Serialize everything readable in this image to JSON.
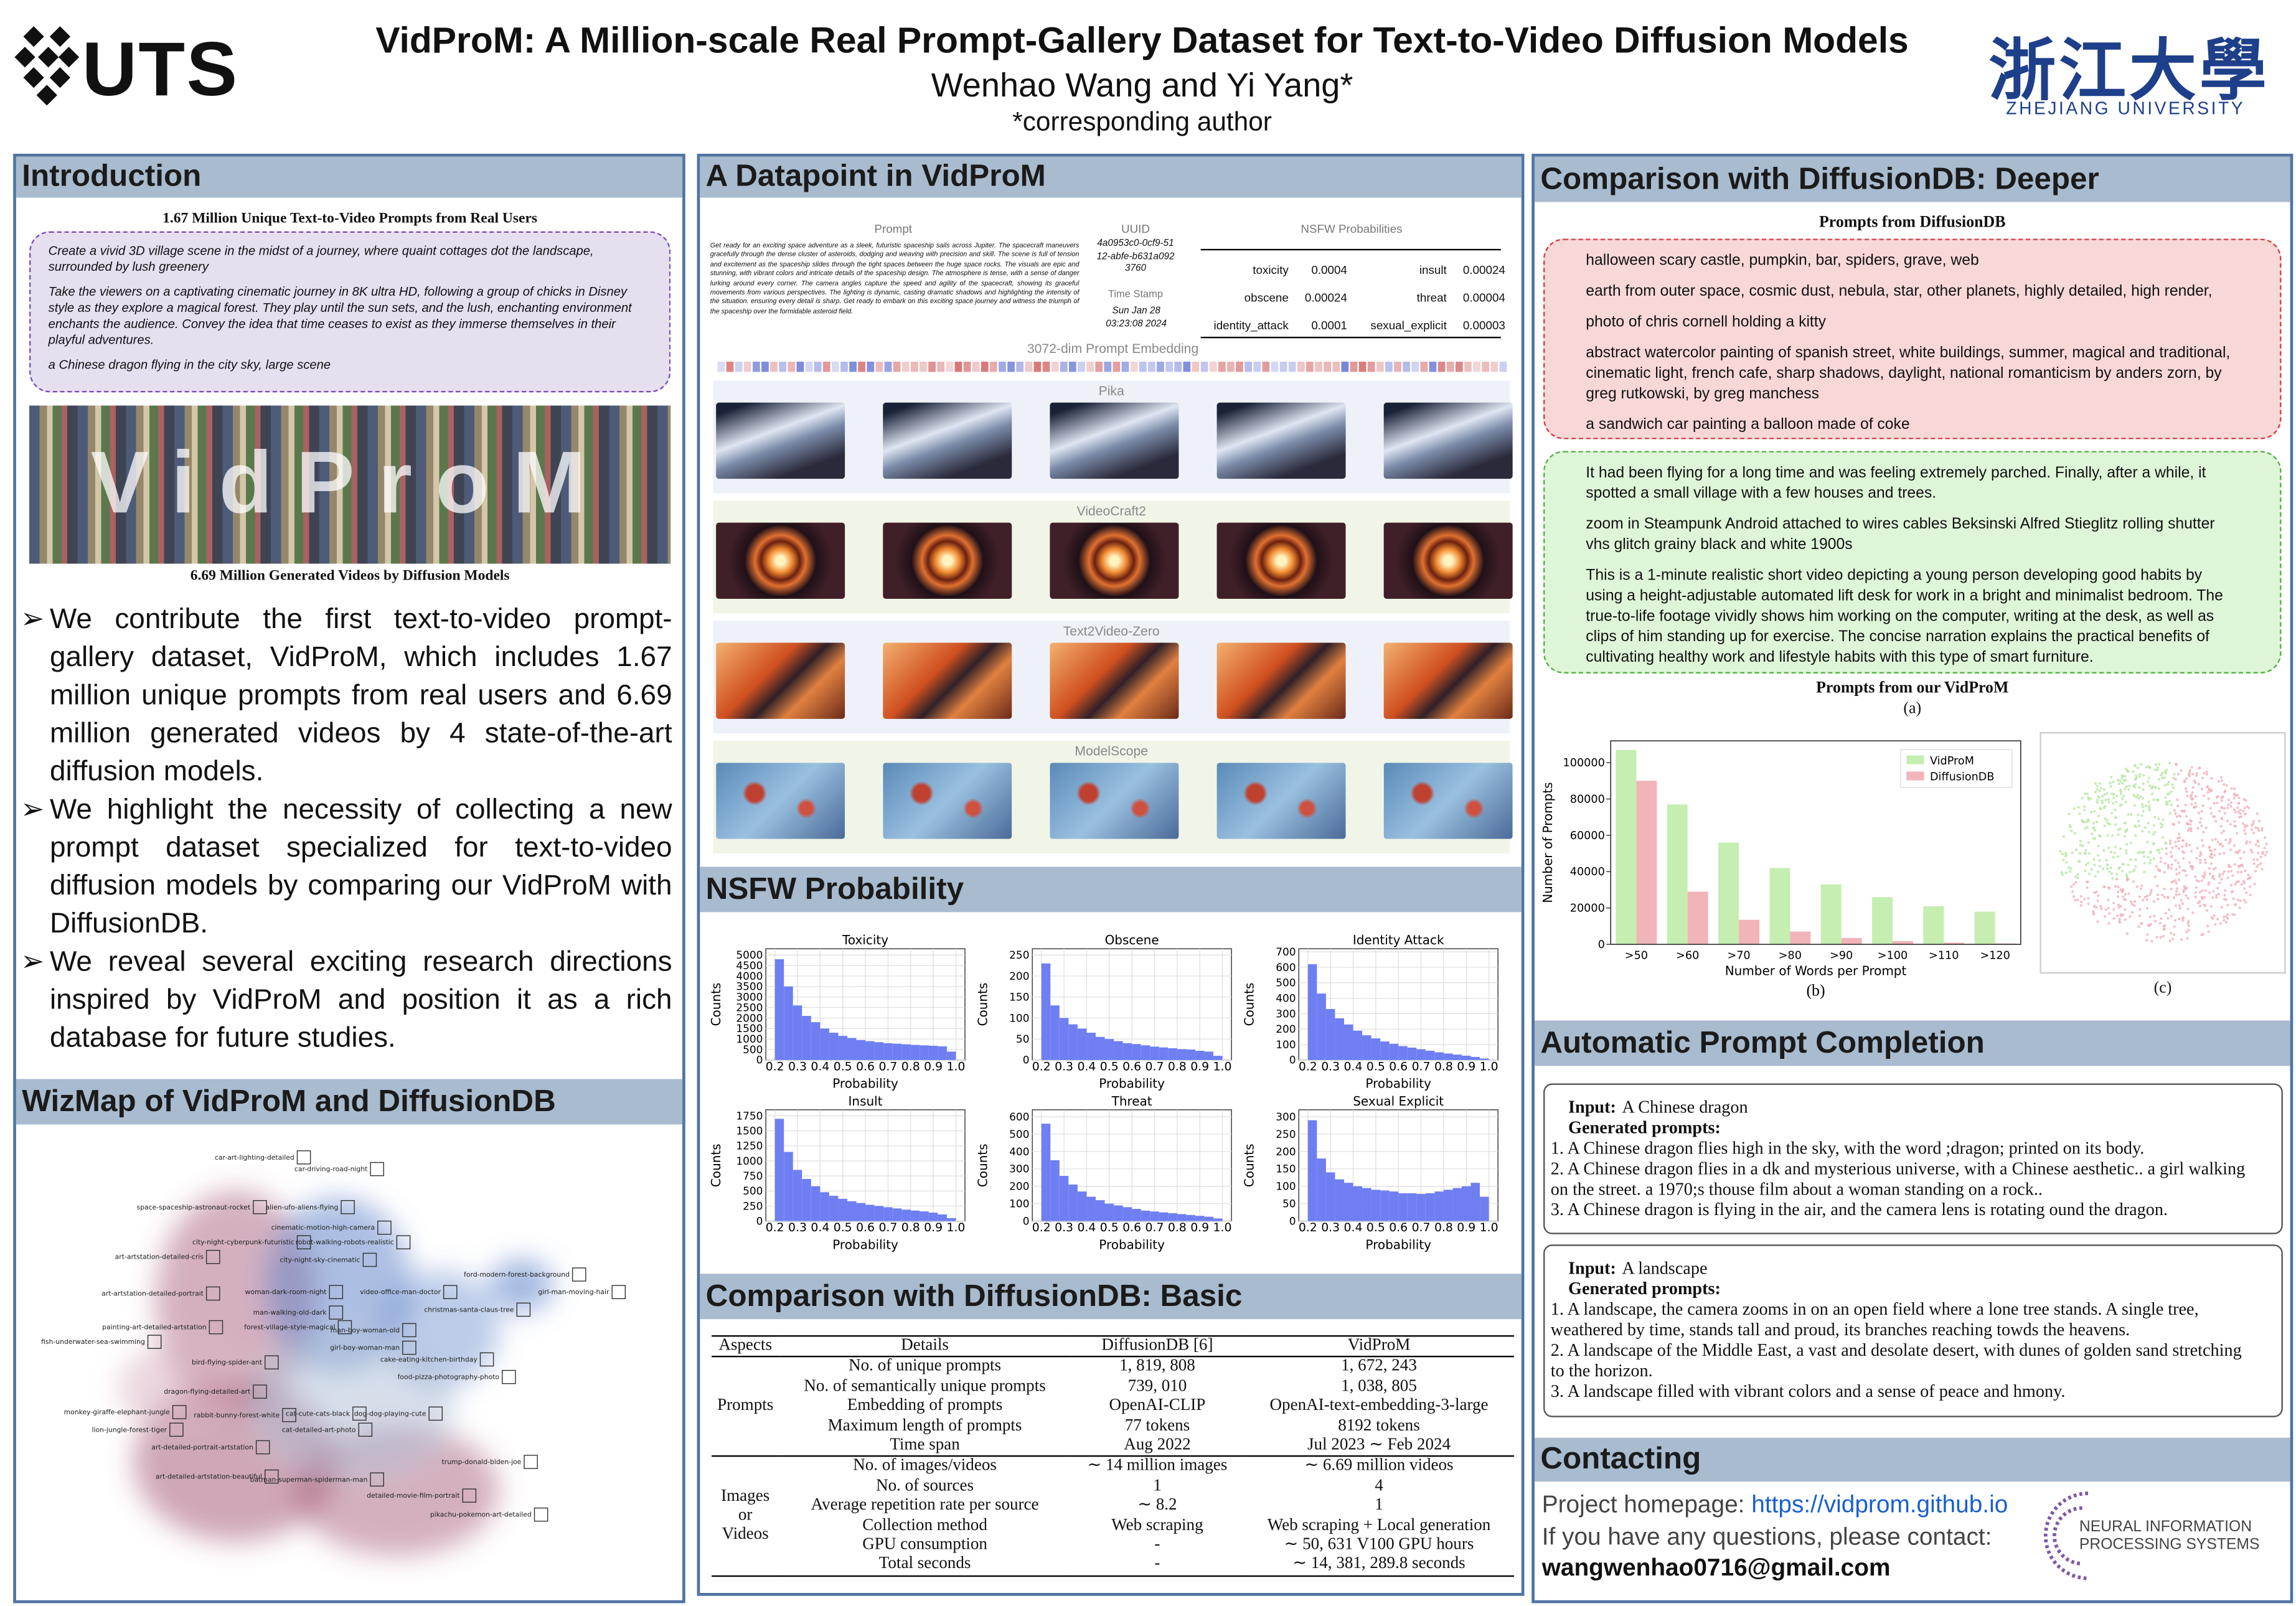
{
  "header": {
    "title": "VidProM: A Million-scale Real Prompt-Gallery Dataset for Text-to-Video Diffusion Models",
    "authors": "Wenhao Wang and Yi Yang*",
    "note": "*corresponding author",
    "left_logo": "UTS",
    "right_logo": "浙江大學",
    "right_logo_sub": "ZHEJIANG UNIVERSITY"
  },
  "introduction": {
    "heading": "Introduction",
    "figure_title": "1.67 Million Unique Text-to-Video Prompts from Real Users",
    "prompts": [
      "Create a vivid 3D village scene in the midst of a journey, where quaint cottages dot the landscape, surrounded by lush greenery",
      "Take the viewers on a captivating cinematic journey in 8K ultra HD, following a group of chicks in Disney style as they explore a magical forest. They play until the sun sets, and the lush, enchanting environment enchants the audience. Convey the idea that time ceases to exist as they immerse themselves in their playful adventures.",
      "a Chinese dragon flying in the city sky, large scene"
    ],
    "overlay": "VidProM",
    "figure_caption": "6.69 Million Generated Videos by Diffusion Models",
    "bullets": [
      "We contribute the first text-to-video prompt-gallery dataset, VidProM, which includes 1.67 million unique prompts from real users and 6.69 million generated videos by 4 state-of-the-art diffusion models.",
      "We highlight the necessity of collecting a new prompt dataset specialized for text-to-video diffusion models by comparing our VidProM with DiffusionDB.",
      "We reveal several exciting research directions inspired by VidProM and position it as a rich database for future studies."
    ]
  },
  "wizmap": {
    "heading": "WizMap of VidProM and DiffusionDB",
    "labels": [
      "car-art-lighting-detailed",
      "car-driving-road-night",
      "space-spaceship-astronaut-rocket",
      "alien-ufo-aliens-flying",
      "cinematic-motion-high-camera",
      "city-night-cyberpunk-futuristic",
      "robot-walking-robots-realistic",
      "art-artstation-detailed-cris",
      "city-night-sky-cinematic",
      "ford-modern-forest-background",
      "girl-man-moving-hair",
      "art-artstation-detailed-portrait",
      "woman-dark-room-night",
      "video-office-man-doctor",
      "christmas-santa-claus-tree",
      "man-walking-old-dark",
      "painting-art-detailed-artstation",
      "forest-village-style-magical",
      "man-boy-woman-old",
      "girl-boy-woman-man",
      "fish-underwater-sea-swimming",
      "bird-flying-spider-ant",
      "cake-eating-kitchen-birthday",
      "food-pizza-photography-photo",
      "dragon-flying-detailed-art",
      "monkey-giraffe-elephant-jungle",
      "rabbit-bunny-forest-white",
      "cat-cute-cats-black",
      "dog-dog-playing-cute",
      "lion-jungle-forest-tiger",
      "art-detailed-portrait-artstation",
      "cat-detailed-art-photo",
      "trump-donald-biden-joe",
      "art-detailed-artstation-beautiful",
      "batman-superman-spiderman-man",
      "detailed-movie-film-portrait",
      "pikachu-pokemon-art-detailed"
    ]
  },
  "datapoint": {
    "heading": "A Datapoint in VidProM",
    "prompt_label": "Prompt",
    "prompt": "Get ready for an exciting space adventure as a sleek, futuristic spaceship sails across Jupiter. The spacecraft maneuvers gracefully through the dense cluster of asteroids, dodging and weaving with precision and skill. The scene is full of tension and excitement as the spaceship slides through the tight spaces between the huge space rocks. The visuals are epic and stunning, with vibrant colors and intricate details of the spaceship design. The atmosphere is tense, with a sense of danger lurking around every corner. The camera angles capture the speed and agility of the spacecraft, showing its graceful movements from various perspectives. The lighting is dynamic, casting dramatic shadows and highlighting the intensity of the situation. ensuring every detail is sharp. Get ready to embark on this exciting space journey and witness the triumph of the spaceship over the formidable asteroid field.",
    "uuid_label": "UUID",
    "uuid": "4a0953c0-0cf9-5112-abfe-b631a0923760",
    "time_label": "Time Stamp",
    "time": "Sun Jan 28 03:23:08 2024",
    "nsfw_label": "NSFW Probabilities",
    "nsfw": [
      [
        "toxicity",
        0.0004,
        "insult",
        0.00024
      ],
      [
        "obscene",
        0.00024,
        "threat",
        4e-05
      ],
      [
        "identity_attack",
        0.0001,
        "sexual_explicit",
        3e-05
      ]
    ],
    "embedding_label": "3072-dim Prompt Embedding",
    "models": [
      "Pika",
      "VideoCraft2",
      "Text2Video-Zero",
      "ModelScope"
    ]
  },
  "nsfw": {
    "heading": "NSFW Probability",
    "xlabel": "Probability",
    "ylabel": "Counts",
    "xlim": [
      0.16,
      1.04
    ],
    "xticks": [
      0.2,
      0.3,
      0.4,
      0.5,
      0.6,
      0.7,
      0.8,
      0.9,
      {
        "value": 1,
        "label": "1.0"
      }
    ],
    "bins": [
      0.2,
      0.24,
      0.28,
      0.32,
      0.36,
      0.4,
      0.44,
      0.48,
      0.52,
      0.56,
      0.6,
      0.64,
      0.68,
      0.72,
      0.76,
      0.8,
      0.84,
      0.88,
      0.92,
      0.96,
      1.0
    ],
    "color": "#6f7ff2",
    "charts": [
      {
        "type": "histogram",
        "title": "Toxicity",
        "ylim": [
          0,
          5300
        ],
        "yticks": [
          0,
          500,
          1000,
          1500,
          2000,
          2500,
          3000,
          3500,
          4000,
          4500,
          5000
        ],
        "counts": [
          4800,
          3500,
          2600,
          2100,
          1800,
          1500,
          1300,
          1150,
          1050,
          950,
          900,
          850,
          800,
          780,
          750,
          720,
          700,
          680,
          650,
          400
        ]
      },
      {
        "type": "histogram",
        "title": "Obscene",
        "ylim": [
          0,
          265
        ],
        "yticks": [
          0,
          50,
          100,
          150,
          200,
          250
        ],
        "counts": [
          230,
          130,
          100,
          85,
          75,
          65,
          55,
          50,
          45,
          40,
          38,
          35,
          32,
          30,
          28,
          26,
          25,
          22,
          20,
          10
        ]
      },
      {
        "type": "histogram",
        "title": "Identity Attack",
        "ylim": [
          0,
          720
        ],
        "yticks": [
          0,
          100,
          200,
          300,
          400,
          500,
          600,
          700
        ],
        "counts": [
          620,
          430,
          330,
          270,
          230,
          190,
          160,
          140,
          120,
          105,
          90,
          80,
          70,
          60,
          50,
          42,
          35,
          28,
          20,
          10
        ]
      },
      {
        "type": "histogram",
        "title": "Insult",
        "ylim": [
          0,
          1850
        ],
        "yticks": [
          0,
          250,
          500,
          750,
          1000,
          1250,
          1500,
          1750
        ],
        "counts": [
          1700,
          1150,
          850,
          700,
          580,
          480,
          420,
          370,
          330,
          300,
          270,
          250,
          230,
          210,
          190,
          175,
          160,
          140,
          110,
          50
        ]
      },
      {
        "type": "histogram",
        "title": "Threat",
        "ylim": [
          0,
          640
        ],
        "yticks": [
          0,
          100,
          200,
          300,
          400,
          500,
          600
        ],
        "counts": [
          560,
          350,
          260,
          210,
          170,
          140,
          120,
          100,
          90,
          80,
          70,
          60,
          55,
          50,
          45,
          40,
          35,
          30,
          25,
          15
        ]
      },
      {
        "type": "histogram",
        "title": "Sexual Explicit",
        "ylim": [
          0,
          320
        ],
        "yticks": [
          0,
          50,
          100,
          150,
          200,
          250,
          300
        ],
        "counts": [
          290,
          180,
          140,
          120,
          110,
          100,
          95,
          90,
          88,
          85,
          80,
          80,
          78,
          80,
          85,
          90,
          95,
          100,
          110,
          70
        ]
      }
    ]
  },
  "basic": {
    "heading": "Comparison with DiffusionDB: Basic",
    "headers": [
      "Aspects",
      "Details",
      "DiffusionDB [6]",
      "VidProM"
    ],
    "groups": [
      {
        "aspect": "Prompts",
        "rows": [
          [
            "No. of unique prompts",
            "1, 819, 808",
            "1, 672, 243"
          ],
          [
            "No. of semantically unique prompts",
            "739, 010",
            "1, 038, 805"
          ],
          [
            "Embedding of prompts",
            "OpenAI-CLIP",
            "OpenAI-text-embedding-3-large"
          ],
          [
            "Maximum length of prompts",
            "77 tokens",
            "8192 tokens"
          ],
          [
            "Time span",
            "Aug 2022",
            "Jul 2023 ∼ Feb 2024"
          ]
        ]
      },
      {
        "aspect": "Images or Videos",
        "rows": [
          [
            "No. of images/videos",
            "∼ 14 million images",
            "∼ 6.69 million videos"
          ],
          [
            "No. of sources",
            "1",
            "4"
          ],
          [
            "Average repetition rate per source",
            "∼ 8.2",
            "1"
          ],
          [
            "Collection method",
            "Web scraping",
            "Web scraping + Local generation"
          ],
          [
            "GPU consumption",
            "-",
            "∼ 50, 631 V100 GPU hours"
          ],
          [
            "Total seconds",
            "-",
            "∼ 14, 381, 289.8 seconds"
          ]
        ]
      }
    ]
  },
  "deeper": {
    "heading": "Comparison with DiffusionDB: Deeper",
    "diffusiondb_title": "Prompts from DiffusionDB",
    "diffusiondb_prompts": [
      "halloween scary castle, pumpkin, bar, spiders, grave, web",
      "earth from outer space, cosmic dust, nebula, star, other planets, highly detailed, high render,",
      "photo of chris cornell holding a kitty",
      "abstract watercolor painting of spanish street, white buildings, summer, magical and traditional, cinematic light, french cafe, sharp shadows, daylight, national romanticism by anders zorn, by greg rutkowski, by greg manchess",
      "a sandwich car painting a balloon made of coke"
    ],
    "vidprom_prompts": [
      "It had been flying for a long time and was feeling extremely parched. Finally, after a while, it spotted a small village with a few houses and trees.",
      "zoom in Steampunk Android  attached to wires cables  Beksinski  Alfred Stieglitz rolling shutter vhs glitch grainy black and white 1900s",
      "This is a 1-minute realistic short video depicting a young person developing good habits by using a height-adjustable automated lift desk for work in a bright and minimalist bedroom. The true-to-life footage vividly shows him working on the computer, writing at the desk, as well as clips of him standing up for exercise. The concise narration explains the practical benefits of cultivating healthy work and lifestyle habits with this type of smart furniture."
    ],
    "vidprom_title": "Prompts from our VidProM",
    "caption_a": "(a)",
    "bar_chart": {
      "type": "bar",
      "categories": [
        ">50",
        ">60",
        ">70",
        ">80",
        ">90",
        ">100",
        ">110",
        ">120"
      ],
      "series": [
        {
          "name": "VidProM",
          "color": "#c5eeb0",
          "values": [
            107000,
            77000,
            56000,
            42000,
            33000,
            26000,
            21000,
            18000
          ]
        },
        {
          "name": "DiffusionDB",
          "color": "#f1b4b9",
          "values": [
            90000,
            29000,
            13500,
            7000,
            3500,
            1800,
            900,
            500
          ]
        }
      ],
      "ylim": [
        0,
        112000
      ],
      "yticks": [
        0,
        20000,
        40000,
        60000,
        80000,
        100000
      ],
      "xlabel": "Number of Words per Prompt",
      "ylabel": "Number of Prompts",
      "legend": "upper right",
      "caption": "(b)"
    },
    "caption_c": "(c)"
  },
  "completion": {
    "heading": "Automatic Prompt Completion",
    "boxes": [
      {
        "input_label": "Input:",
        "input": "A Chinese dragon",
        "generated_label": "Generated prompts:",
        "prompts": [
          "1. A Chinese dragon flies high in the sky, with the word ;dragon; printed on its body.",
          "2. A Chinese dragon flies in a dk and mysterious universe, with a Chinese aesthetic.. a girl walking on the street. a 1970;s thouse film about a woman standing on a rock..",
          "3. A Chinese dragon is flying in the air, and the camera lens is rotating ound the dragon."
        ]
      },
      {
        "input_label": "Input:",
        "input": "A landscape",
        "generated_label": "Generated prompts:",
        "prompts": [
          "1. A landscape, the camera zooms in on an open field where a lone tree stands. A single tree, weathered by time, stands tall and proud, its branches reaching towds the heavens.",
          "2.  A landscape of the Middle East, a vast and desolate desert, with dunes of golden sand stretching to the horizon.",
          "3. A landscape filled with vibrant colors and a sense of peace and hmony."
        ]
      }
    ]
  },
  "contacting": {
    "heading": "Contacting",
    "homepage_label": "Project homepage: ",
    "homepage": "https://vidprom.github.io",
    "question": "If you have any questions, please contact:",
    "email": "wangwenhao0716@gmail.com",
    "logo": "NEURAL INFORMATION PROCESSING SYSTEMS"
  }
}
